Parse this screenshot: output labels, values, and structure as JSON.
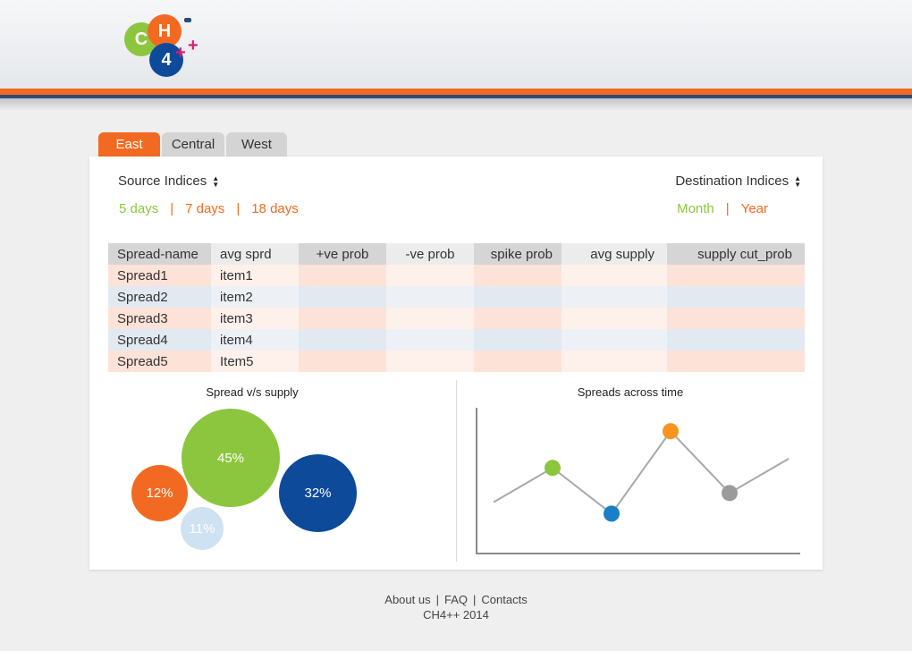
{
  "logo": {
    "c": "C",
    "h": "H",
    "four": "4"
  },
  "tabs": [
    {
      "label": "East",
      "active": true
    },
    {
      "label": "Central",
      "active": false
    },
    {
      "label": "West",
      "active": false
    }
  ],
  "source_indices": {
    "label": "Source Indices",
    "icon": "sort-icon"
  },
  "destination_indices": {
    "label": "Destination Indices",
    "icon": "sort-icon"
  },
  "source_periods": [
    "5 days",
    "7 days",
    "18 days"
  ],
  "destination_periods": [
    "Month",
    "Year"
  ],
  "table": {
    "headers": [
      "Spread-name",
      "avg sprd",
      "+ve prob",
      "-ve prob",
      "spike prob",
      "avg supply",
      "supply cut_prob"
    ],
    "rows": [
      [
        "Spread1",
        "item1",
        "",
        "",
        "",
        "",
        ""
      ],
      [
        "Spread2",
        "item2",
        "",
        "",
        "",
        "",
        ""
      ],
      [
        "Spread3",
        "item3",
        "",
        "",
        "",
        "",
        ""
      ],
      [
        "Spread4",
        "item4",
        "",
        "",
        "",
        "",
        ""
      ],
      [
        "Spread5",
        "Item5",
        "",
        "",
        "",
        "",
        ""
      ]
    ]
  },
  "bubble_chart": {
    "title": "Spread v/s supply",
    "bubbles": [
      {
        "label": "45%",
        "color": "#8cc63e"
      },
      {
        "label": "12%",
        "color": "#f26a21"
      },
      {
        "label": "32%",
        "color": "#0d4a9a"
      },
      {
        "label": "11%",
        "color": "#cfe2f1"
      }
    ]
  },
  "line_chart": {
    "title": "Spreads across time",
    "points": [
      {
        "y": 0.3,
        "marker": null
      },
      {
        "y": 0.6,
        "marker": "#8cc63e"
      },
      {
        "y": 0.2,
        "marker": "#1a7fc6"
      },
      {
        "y": 0.92,
        "marker": "#f7941d"
      },
      {
        "y": 0.38,
        "marker": "#9b9b9b"
      },
      {
        "y": 0.68,
        "marker": null
      }
    ]
  },
  "footer": {
    "links": [
      "About us",
      "FAQ",
      "Contacts"
    ],
    "copyright": "CH4++ 2014"
  },
  "colors": {
    "accent": "#f26a21",
    "green": "#8cc63e",
    "blue": "#0d4a9a"
  }
}
